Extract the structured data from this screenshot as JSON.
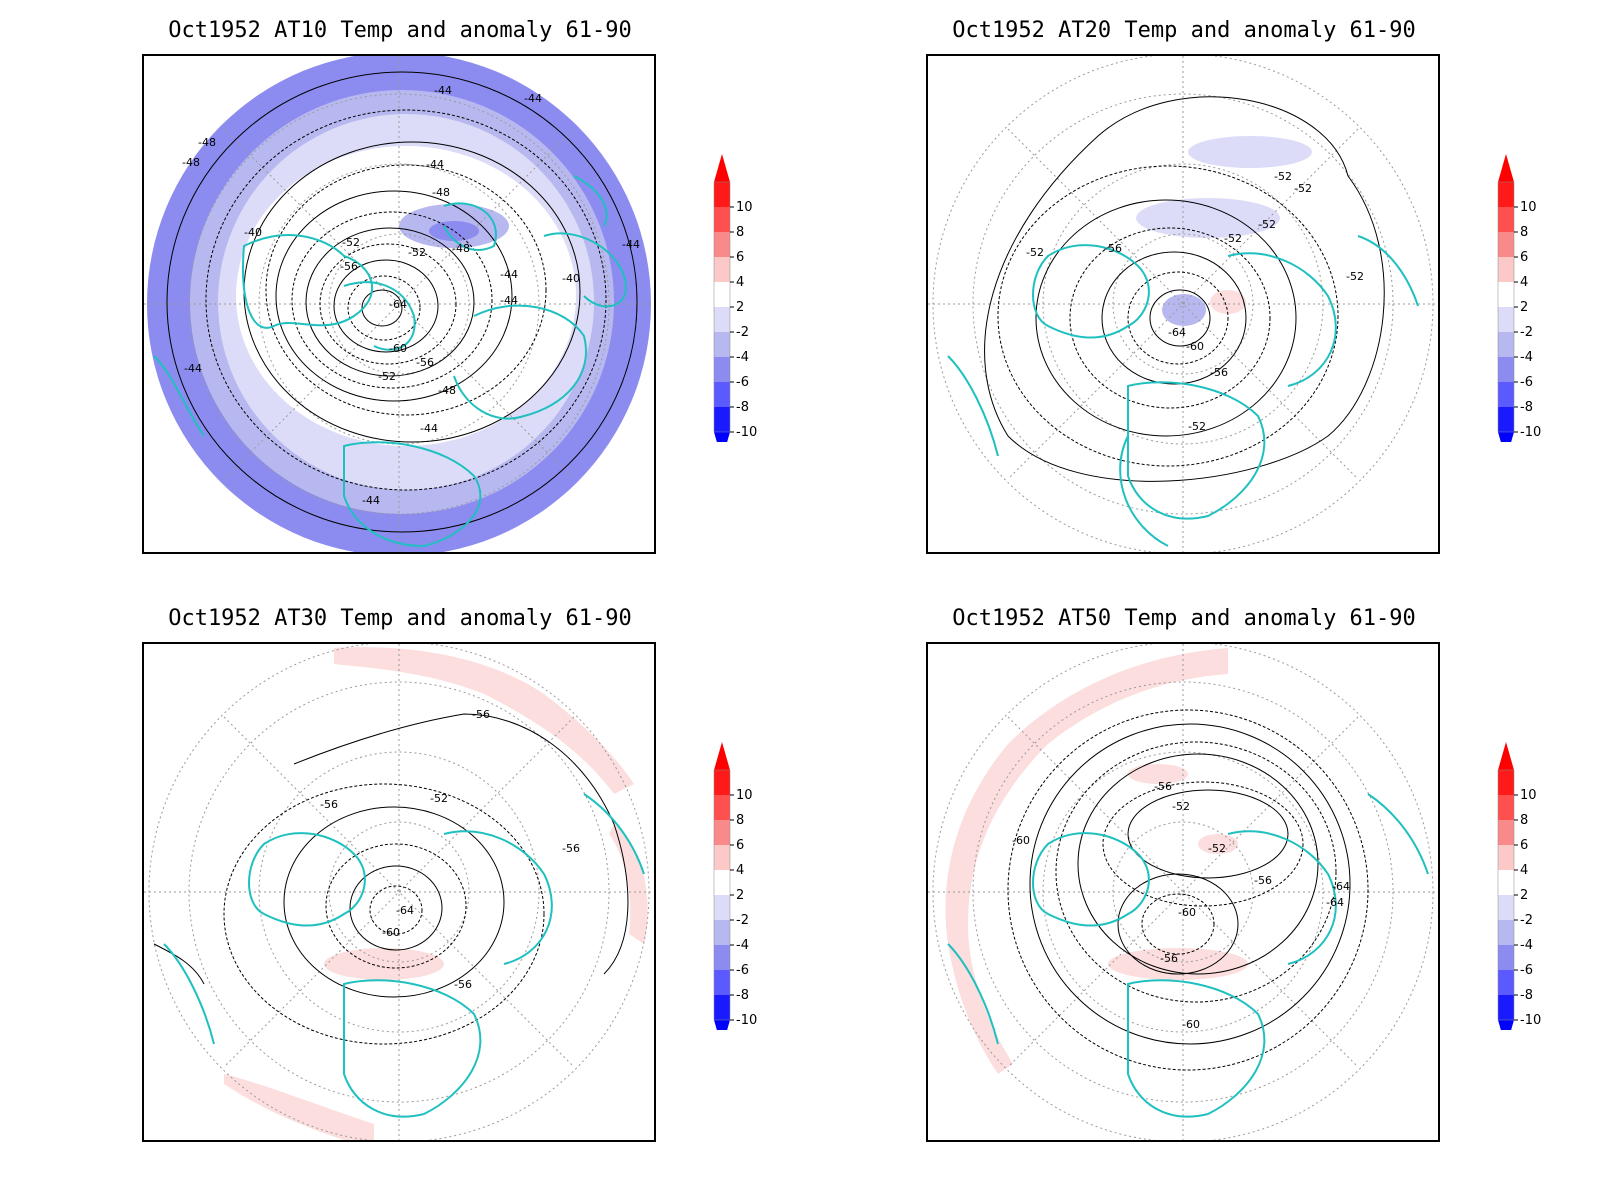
{
  "panels": [
    {
      "title": "Oct1952 AT10 Temp and anomaly 61-90",
      "anomaly_fill": "cold",
      "contour_labels": [
        "-48",
        "-48",
        "-44",
        "-44",
        "-44",
        "-44",
        "-40",
        "-40",
        "-48",
        "-52",
        "-56",
        "-52",
        "-48",
        "-64",
        "-60",
        "-56",
        "-52",
        "-48",
        "-44",
        "-44",
        "-44",
        "-44",
        "-44"
      ]
    },
    {
      "title": "Oct1952 AT20 Temp and anomaly 61-90",
      "anomaly_fill": "mixed",
      "contour_labels": [
        "-52",
        "-52",
        "-52",
        "-52",
        "-52",
        "-56",
        "-52",
        "-64",
        "-60",
        "-56",
        "-52"
      ]
    },
    {
      "title": "Oct1952 AT30 Temp and anomaly 61-90",
      "anomaly_fill": "warm",
      "contour_labels": [
        "-56",
        "-56",
        "-52",
        "-56",
        "-64",
        "-60",
        "-56"
      ]
    },
    {
      "title": "Oct1952 AT50 Temp and anomaly 61-90",
      "anomaly_fill": "warm",
      "contour_labels": [
        "-56",
        "-52",
        "-60",
        "-52",
        "-56",
        "-64",
        "-64",
        "-60",
        "-56",
        "-60"
      ]
    }
  ],
  "colorbar": {
    "labels": [
      "10",
      "8",
      "6",
      "4",
      "2",
      "-2",
      "-4",
      "-6",
      "-8",
      "-10"
    ],
    "colors": [
      "#ff1a1a",
      "#ff5050",
      "#f98a8a",
      "#fcc8c8",
      "#ffffff",
      "#dcdcf8",
      "#b8b8f0",
      "#8c8cf0",
      "#5a5aff",
      "#1a1aff"
    ],
    "top_color": "#ff0000",
    "bottom_color": "#0000ff"
  },
  "colors": {
    "coastline": "#20c0c0",
    "contour": "#000000",
    "grid": "#9a9a9a",
    "cold_light": "#dcdcf8",
    "cold_mid": "#b8b8f0",
    "cold_deep": "#8c8cf0",
    "warm_light": "#fcdede"
  }
}
